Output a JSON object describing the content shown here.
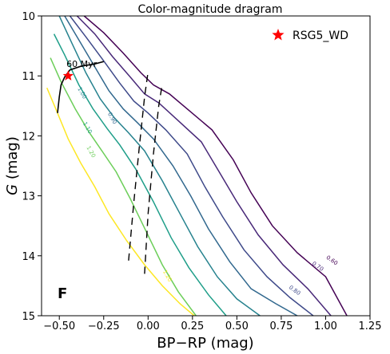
{
  "chart_data": {
    "type": "line",
    "title": "Color-magnitude dragram",
    "xlabel": "BP−RP (mag)",
    "ylabel_italic": "G",
    "ylabel_rest": " (mag)",
    "xlim": [
      -0.6,
      1.25
    ],
    "ylim": [
      15,
      10
    ],
    "y_inverted": true,
    "xticks": [
      -0.5,
      -0.25,
      0.0,
      0.25,
      0.5,
      0.75,
      1.0,
      1.25
    ],
    "xtick_labels": [
      "−0.50",
      "−0.25",
      "0.00",
      "0.25",
      "0.50",
      "0.75",
      "1.00",
      "1.25"
    ],
    "yticks": [
      10,
      11,
      12,
      13,
      14,
      15
    ],
    "ytick_labels": [
      "10",
      "11",
      "12",
      "13",
      "14",
      "15"
    ],
    "grid": false,
    "legend": {
      "placement": "top-right",
      "entries": [
        {
          "label": "RSG5_WD",
          "marker": "star",
          "color": "#ff0000"
        }
      ]
    },
    "panel_label": "F",
    "contours": [
      {
        "level": "0.60",
        "color": "#440154",
        "label_at": [
          1.03,
          14.1
        ],
        "points": [
          [
            -0.36,
            10
          ],
          [
            -0.25,
            10.28
          ],
          [
            -0.14,
            10.62
          ],
          [
            -0.04,
            10.95
          ],
          [
            0.03,
            11.15
          ],
          [
            0.12,
            11.3
          ],
          [
            0.22,
            11.55
          ],
          [
            0.36,
            11.9
          ],
          [
            0.48,
            12.4
          ],
          [
            0.58,
            12.95
          ],
          [
            0.7,
            13.5
          ],
          [
            0.84,
            13.95
          ],
          [
            1.0,
            14.35
          ],
          [
            1.12,
            15.0
          ]
        ]
      },
      {
        "level": "0.70",
        "color": "#482878",
        "label_at": [
          0.95,
          14.2
        ],
        "points": [
          [
            -0.4,
            10
          ],
          [
            -0.3,
            10.3
          ],
          [
            -0.2,
            10.68
          ],
          [
            -0.1,
            11.02
          ],
          [
            -0.02,
            11.3
          ],
          [
            0.06,
            11.45
          ],
          [
            0.16,
            11.72
          ],
          [
            0.3,
            12.1
          ],
          [
            0.4,
            12.6
          ],
          [
            0.5,
            13.1
          ],
          [
            0.62,
            13.65
          ],
          [
            0.76,
            14.15
          ],
          [
            0.9,
            14.55
          ],
          [
            1.03,
            15.0
          ]
        ]
      },
      {
        "level": "0.80",
        "color": "#3e4989",
        "label_at": [
          0.82,
          14.6
        ],
        "points": [
          [
            -0.44,
            10
          ],
          [
            -0.35,
            10.35
          ],
          [
            -0.25,
            10.75
          ],
          [
            -0.16,
            11.12
          ],
          [
            -0.08,
            11.42
          ],
          [
            0.0,
            11.62
          ],
          [
            0.1,
            11.9
          ],
          [
            0.22,
            12.3
          ],
          [
            0.32,
            12.85
          ],
          [
            0.42,
            13.35
          ],
          [
            0.54,
            13.9
          ],
          [
            0.67,
            14.35
          ],
          [
            0.8,
            14.7
          ],
          [
            0.93,
            15.0
          ]
        ]
      },
      {
        "level": "0.90",
        "color": "#31688e",
        "label_at": [
          -0.21,
          11.72
        ],
        "points": [
          [
            -0.47,
            10
          ],
          [
            -0.39,
            10.4
          ],
          [
            -0.3,
            10.85
          ],
          [
            -0.22,
            11.25
          ],
          [
            -0.14,
            11.55
          ],
          [
            -0.06,
            11.78
          ],
          [
            0.03,
            12.05
          ],
          [
            0.14,
            12.5
          ],
          [
            0.24,
            13.0
          ],
          [
            0.34,
            13.55
          ],
          [
            0.46,
            14.1
          ],
          [
            0.58,
            14.55
          ],
          [
            0.72,
            14.8
          ],
          [
            0.84,
            15.0
          ]
        ]
      },
      {
        "level": "1.00",
        "color": "#26828e",
        "label_at": [
          -0.38,
          11.3
        ],
        "points": [
          [
            -0.5,
            10
          ],
          [
            -0.43,
            10.45
          ],
          [
            -0.35,
            10.95
          ],
          [
            -0.27,
            11.38
          ],
          [
            -0.19,
            11.7
          ],
          [
            -0.11,
            11.95
          ],
          [
            -0.02,
            12.25
          ],
          [
            0.08,
            12.75
          ],
          [
            0.18,
            13.3
          ],
          [
            0.28,
            13.85
          ],
          [
            0.39,
            14.35
          ],
          [
            0.5,
            14.72
          ],
          [
            0.63,
            15.0
          ]
        ]
      },
      {
        "level": "1.10",
        "color": "#1f9e89",
        "label_at": [
          -0.35,
          11.88
        ],
        "points": [
          [
            -0.53,
            10.3
          ],
          [
            -0.47,
            10.65
          ],
          [
            -0.39,
            11.15
          ],
          [
            -0.31,
            11.55
          ],
          [
            -0.23,
            11.88
          ],
          [
            -0.16,
            12.15
          ],
          [
            -0.07,
            12.55
          ],
          [
            0.03,
            13.1
          ],
          [
            0.13,
            13.7
          ],
          [
            0.23,
            14.2
          ],
          [
            0.34,
            14.65
          ],
          [
            0.44,
            15.0
          ]
        ]
      },
      {
        "level": "1.20",
        "color": "#6cce59",
        "label_at": [
          -0.33,
          12.28
        ],
        "points": [
          [
            -0.55,
            10.7
          ],
          [
            -0.49,
            11.1
          ],
          [
            -0.41,
            11.55
          ],
          [
            -0.33,
            11.95
          ],
          [
            -0.26,
            12.25
          ],
          [
            -0.18,
            12.6
          ],
          [
            -0.1,
            13.05
          ],
          [
            -0.01,
            13.6
          ],
          [
            0.08,
            14.15
          ],
          [
            0.17,
            14.6
          ],
          [
            0.27,
            15.0
          ]
        ]
      },
      {
        "level": "1.20",
        "color": "#fde725",
        "label_at": [
          0.1,
          14.35
        ],
        "points": [
          [
            -0.57,
            11.2
          ],
          [
            -0.52,
            11.55
          ],
          [
            -0.45,
            12.05
          ],
          [
            -0.38,
            12.45
          ],
          [
            -0.3,
            12.85
          ],
          [
            -0.22,
            13.3
          ],
          [
            -0.12,
            13.75
          ],
          [
            -0.02,
            14.15
          ],
          [
            0.08,
            14.5
          ],
          [
            0.18,
            14.8
          ],
          [
            0.26,
            15.0
          ]
        ]
      }
    ],
    "isochrone": {
      "label": "60 Myr",
      "color": "#000000",
      "points": [
        [
          -0.51,
          11.62
        ],
        [
          -0.5,
          11.35
        ],
        [
          -0.49,
          11.15
        ],
        [
          -0.47,
          11.02
        ],
        [
          -0.44,
          10.9
        ],
        [
          -0.38,
          10.84
        ],
        [
          -0.3,
          10.8
        ],
        [
          -0.25,
          10.76
        ]
      ]
    },
    "dashed_lines": [
      {
        "color": "#000000",
        "points": [
          [
            -0.11,
            14.08
          ],
          [
            -0.08,
            13.1
          ],
          [
            -0.05,
            12.2
          ],
          [
            -0.02,
            11.35
          ],
          [
            0.0,
            10.93
          ]
        ]
      },
      {
        "color": "#000000",
        "points": [
          [
            -0.02,
            14.3
          ],
          [
            0.0,
            13.3
          ],
          [
            0.03,
            12.3
          ],
          [
            0.06,
            11.5
          ],
          [
            0.08,
            11.13
          ]
        ]
      }
    ],
    "points": [
      {
        "label": "RSG5_WD",
        "x": -0.45,
        "y": 11.0,
        "color": "#ff0000",
        "marker": "star"
      }
    ]
  }
}
